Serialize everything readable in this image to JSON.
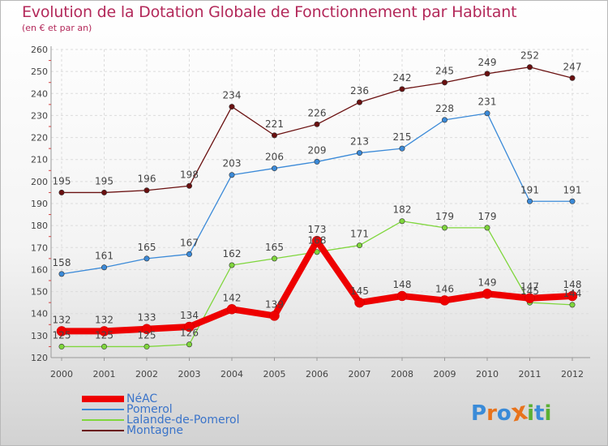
{
  "title": "Evolution de la Dotation Globale de Fonctionnement par Habitant",
  "subtitle": "(en € et par an)",
  "brand": {
    "letters": [
      "P",
      "r",
      "o",
      "x",
      "i",
      "t",
      "i"
    ],
    "colors": [
      "#3a8bd8",
      "#e8731c",
      "#3a8bd8",
      "#e8731c",
      "#5ab033",
      "#3a8bd8",
      "#5ab033"
    ]
  },
  "chart_data": {
    "type": "line",
    "x": [
      "2000",
      "2001",
      "2002",
      "2003",
      "2004",
      "2005",
      "2006",
      "2007",
      "2008",
      "2009",
      "2010",
      "2011",
      "2012"
    ],
    "ylim": [
      120,
      260
    ],
    "yticks": [
      120,
      130,
      140,
      150,
      160,
      170,
      180,
      190,
      200,
      210,
      220,
      230,
      240,
      250,
      260
    ],
    "grid": true,
    "legend_position": "bottom-left",
    "series": [
      {
        "name": "NéAC",
        "color": "#ee0000",
        "width": "thick",
        "values": [
          132,
          132,
          133,
          134,
          142,
          139,
          173,
          145,
          148,
          146,
          149,
          147,
          148
        ]
      },
      {
        "name": "Pomerol",
        "color": "#3b8ad8",
        "width": "thin",
        "values": [
          158,
          161,
          165,
          167,
          203,
          206,
          209,
          213,
          215,
          228,
          231,
          191,
          191
        ]
      },
      {
        "name": "Lalande-de-Pomerol",
        "color": "#7fd63c",
        "width": "thin",
        "values": [
          125,
          125,
          125,
          126,
          162,
          165,
          168,
          171,
          182,
          179,
          179,
          145,
          144
        ]
      },
      {
        "name": "Montagne",
        "color": "#6a1010",
        "width": "thin",
        "values": [
          195,
          195,
          196,
          198,
          234,
          221,
          226,
          236,
          242,
          245,
          249,
          252,
          247
        ]
      }
    ]
  }
}
